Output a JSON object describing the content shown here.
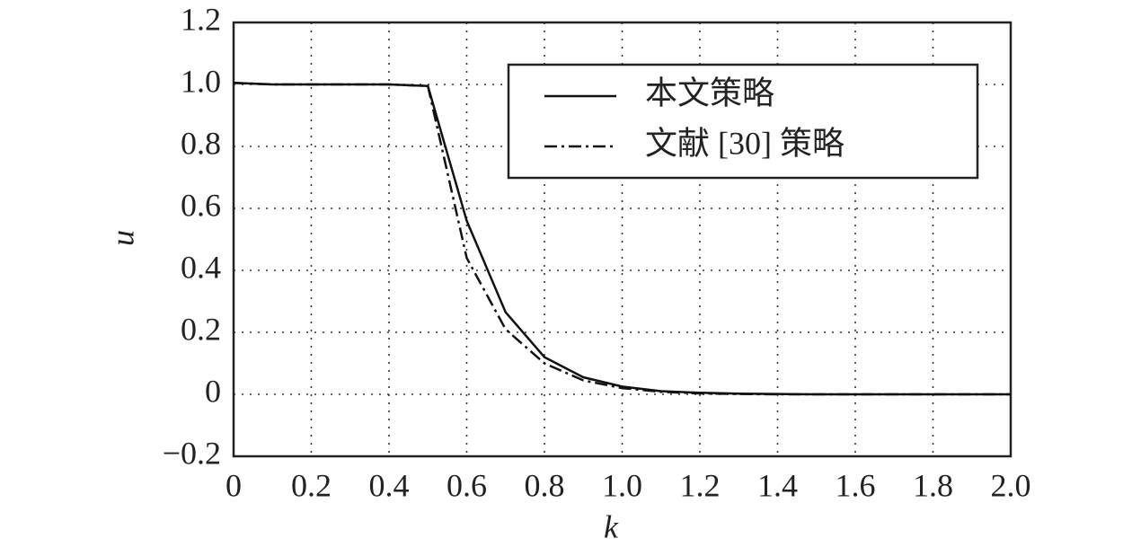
{
  "chart_data": {
    "type": "line",
    "xlabel": "k",
    "ylabel": "u",
    "x": [
      0,
      0.1,
      0.2,
      0.3,
      0.4,
      0.5,
      0.6,
      0.7,
      0.8,
      0.9,
      1.0,
      1.1,
      1.2,
      1.3,
      1.4,
      1.5,
      1.6,
      1.7,
      1.8,
      1.9,
      2.0
    ],
    "series": [
      {
        "name": "本文策略",
        "color": "#111111",
        "linestyle": "solid",
        "values": [
          1.005,
          1.0,
          1.0,
          1.0,
          1.0,
          0.995,
          0.56,
          0.265,
          0.12,
          0.055,
          0.025,
          0.01,
          0.005,
          0.002,
          0.001,
          0,
          0,
          0,
          0,
          0,
          0
        ]
      },
      {
        "name": "文献 [30] 策略",
        "color": "#111111",
        "linestyle": "dashdot",
        "values": [
          1.005,
          1.0,
          1.0,
          1.0,
          1.0,
          0.995,
          0.44,
          0.21,
          0.1,
          0.045,
          0.02,
          0.008,
          0.003,
          0.001,
          0,
          0,
          0,
          0,
          0,
          0,
          0
        ]
      }
    ],
    "xlim": [
      0,
      2.0
    ],
    "xticks": [
      0,
      0.2,
      0.4,
      0.6,
      0.8,
      {
        "value": 1,
        "label": "1.0"
      },
      1.2,
      1.4,
      1.6,
      1.8,
      {
        "value": 2,
        "label": "2.0"
      }
    ],
    "ylim": [
      -0.2,
      1.2
    ],
    "yticks": [
      {
        "value": -0.2,
        "label": "−0.2"
      },
      0,
      0.2,
      0.4,
      0.6,
      0.8,
      {
        "value": 1,
        "label": "1.0"
      },
      1.2
    ],
    "grid": true,
    "legend": "upper right"
  }
}
